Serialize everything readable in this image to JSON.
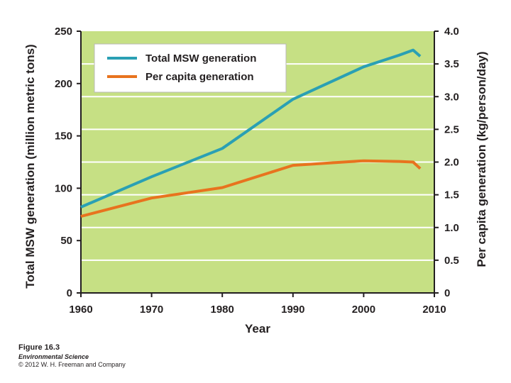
{
  "colors": {
    "plot_bg": "#c6e084",
    "grid": "#ffffff",
    "total_line": "#2aa0b4",
    "per_capita_line": "#e8731e",
    "axis": "#231f20"
  },
  "chart_data": {
    "type": "line",
    "xlabel": "Year",
    "ylabel": "Total MSW generation (million metric tons)",
    "y2label": "Per capita generation (kg/person/day)",
    "xlim": [
      1960,
      2010
    ],
    "ylim": [
      0,
      250
    ],
    "y2lim": [
      0,
      4.0
    ],
    "xticks": [
      "1960",
      "1970",
      "1980",
      "1990",
      "2000",
      "2010"
    ],
    "yticks": [
      "0",
      "50",
      "100",
      "150",
      "200",
      "250"
    ],
    "y2ticks": [
      "0",
      "0.5",
      "1.0",
      "1.5",
      "2.0",
      "2.5",
      "3.0",
      "3.5",
      "4.0"
    ],
    "grid": true,
    "legend_position": "top-left",
    "series": [
      {
        "name": "Total MSW generation",
        "axis": "left",
        "color": "#2aa0b4",
        "x": [
          1960,
          1970,
          1980,
          1990,
          2000,
          2005,
          2007,
          2008
        ],
        "values": [
          82,
          111,
          138,
          185,
          216,
          227,
          232,
          226
        ]
      },
      {
        "name": "Per capita generation",
        "axis": "right",
        "color": "#e8731e",
        "x": [
          1960,
          1970,
          1980,
          1990,
          2000,
          2005,
          2007,
          2008
        ],
        "values": [
          1.17,
          1.45,
          1.61,
          1.95,
          2.02,
          2.01,
          2.0,
          1.9
        ]
      }
    ]
  },
  "caption": {
    "figure": "Figure 16.3",
    "book": "Environmental Science",
    "copyright": "© 2012 W. H. Freeman and Company"
  }
}
